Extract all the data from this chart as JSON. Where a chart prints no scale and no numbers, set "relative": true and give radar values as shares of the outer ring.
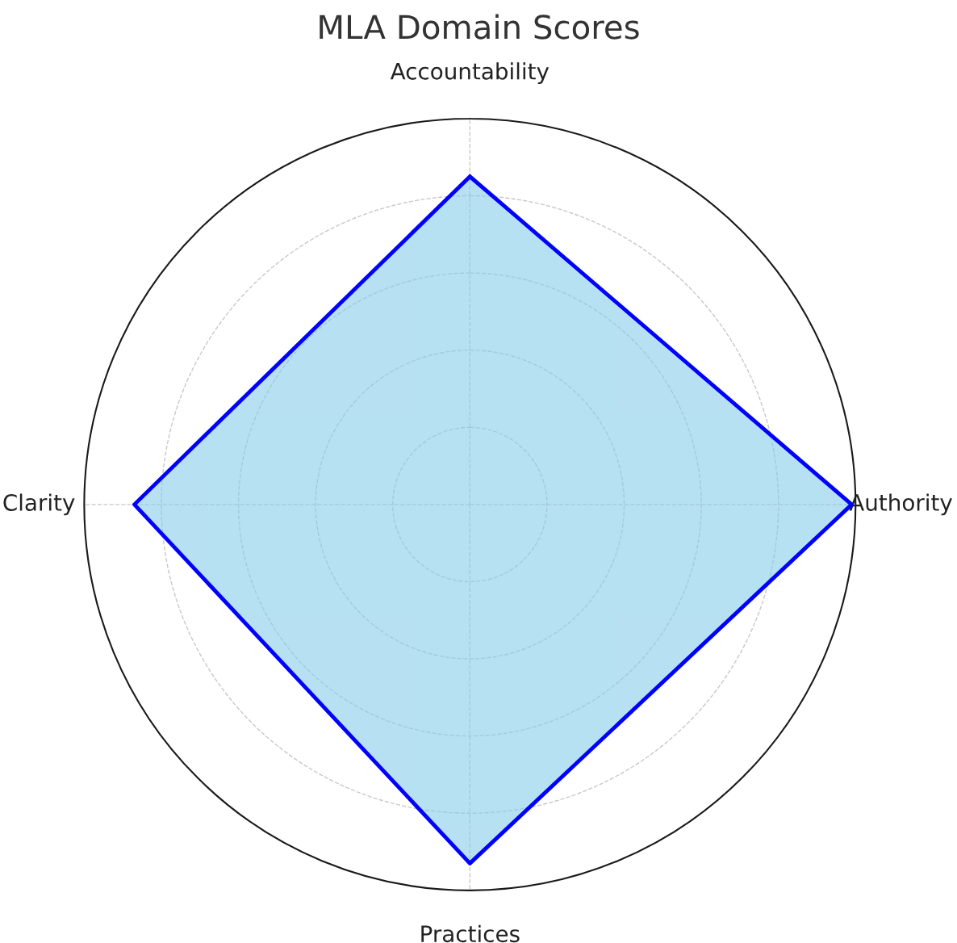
{
  "chart_data": {
    "type": "radar",
    "title": "MLA Domain Scores",
    "relative": true,
    "categories": [
      "Accountability",
      "Authority",
      "Practices",
      "Clarity"
    ],
    "series": [
      {
        "color": "#0000ff",
        "values": [
          0.85,
          0.99,
          0.93,
          0.87
        ]
      }
    ],
    "grid": true,
    "line_style": "solid",
    "marker": "none"
  }
}
